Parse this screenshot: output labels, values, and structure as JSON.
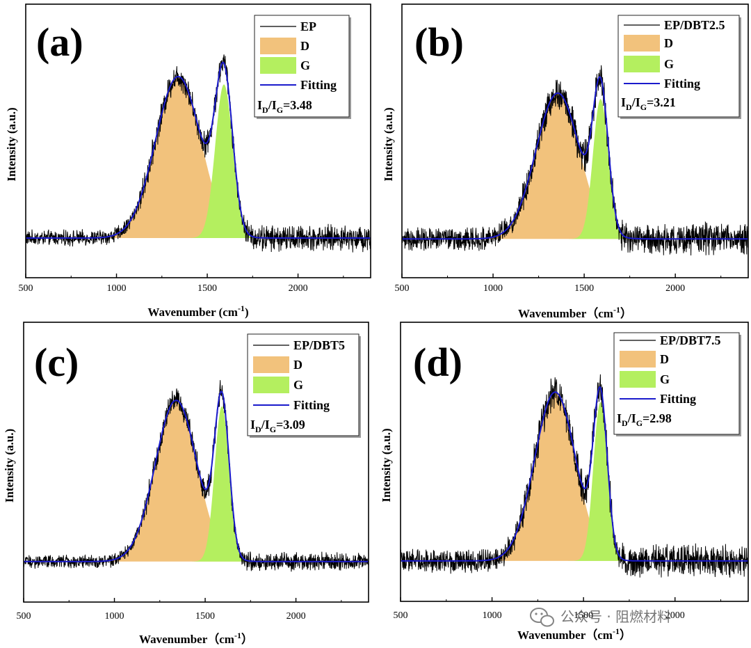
{
  "colors": {
    "d_fill": "#f2c27c",
    "g_fill": "#b4ef5f",
    "fit_line": "#1a1acc",
    "raw_line": "#000000"
  },
  "legend_labels": {
    "d": "D",
    "g": "G",
    "fitting": "Fitting"
  },
  "watermark": {
    "icon": "wechat-icon",
    "text": "公众号 · 阻燃材料"
  },
  "chart_data": [
    {
      "type": "line",
      "panel": "(a)",
      "series_name": "EP",
      "ratio_text": "3.48",
      "xlabel": "Wavenumber (cm",
      "xlabel_sup": "-1",
      "xlabel_end": ")",
      "ylabel": "Intensity (a.u.)",
      "xlim": [
        500,
        2400
      ],
      "xticks": [
        500,
        1000,
        1500,
        2000
      ],
      "d_band": {
        "center": 1340,
        "height": 0.82,
        "width": 125
      },
      "g_band": {
        "center": 1592,
        "height": 0.78,
        "width": 48
      },
      "noise": 0.03,
      "noise_high": 0.05
    },
    {
      "type": "line",
      "panel": "(b)",
      "series_name": "EP/DBT2.5",
      "ratio_text": "3.21",
      "xlabel": "Wavenumber（cm",
      "xlabel_sup": "-1",
      "xlabel_end": "）",
      "ylabel": "Intensity (a.u.)",
      "xlim": [
        500,
        2400
      ],
      "xticks": [
        500,
        1000,
        1500,
        2000
      ],
      "d_band": {
        "center": 1355,
        "height": 0.74,
        "width": 120
      },
      "g_band": {
        "center": 1590,
        "height": 0.71,
        "width": 42
      },
      "noise": 0.045,
      "noise_high": 0.06
    },
    {
      "type": "line",
      "panel": "(c)",
      "series_name": "EP/DBT5",
      "ratio_text": "3.09",
      "xlabel": "Wavenumber（cm",
      "xlabel_sup": "-1",
      "xlabel_end": "）",
      "ylabel": "Intensity (a.u.)",
      "xlim": [
        500,
        2400
      ],
      "xticks": [
        500,
        1000,
        1500,
        2000
      ],
      "d_band": {
        "center": 1340,
        "height": 0.8,
        "width": 115
      },
      "g_band": {
        "center": 1592,
        "height": 0.77,
        "width": 40
      },
      "noise": 0.025,
      "noise_high": 0.035
    },
    {
      "type": "line",
      "panel": "(d)",
      "series_name": "EP/DBT7.5",
      "ratio_text": "2.98",
      "xlabel": "Wavenumber（cm",
      "xlabel_sup": "-1",
      "xlabel_end": "）",
      "ylabel": "Intensity (a.u.)",
      "xlim": [
        500,
        2400
      ],
      "xticks": [
        500,
        1000,
        1500,
        2000
      ],
      "d_band": {
        "center": 1345,
        "height": 0.84,
        "width": 112
      },
      "g_band": {
        "center": 1592,
        "height": 0.79,
        "width": 38
      },
      "noise": 0.045,
      "noise_high": 0.06
    }
  ]
}
